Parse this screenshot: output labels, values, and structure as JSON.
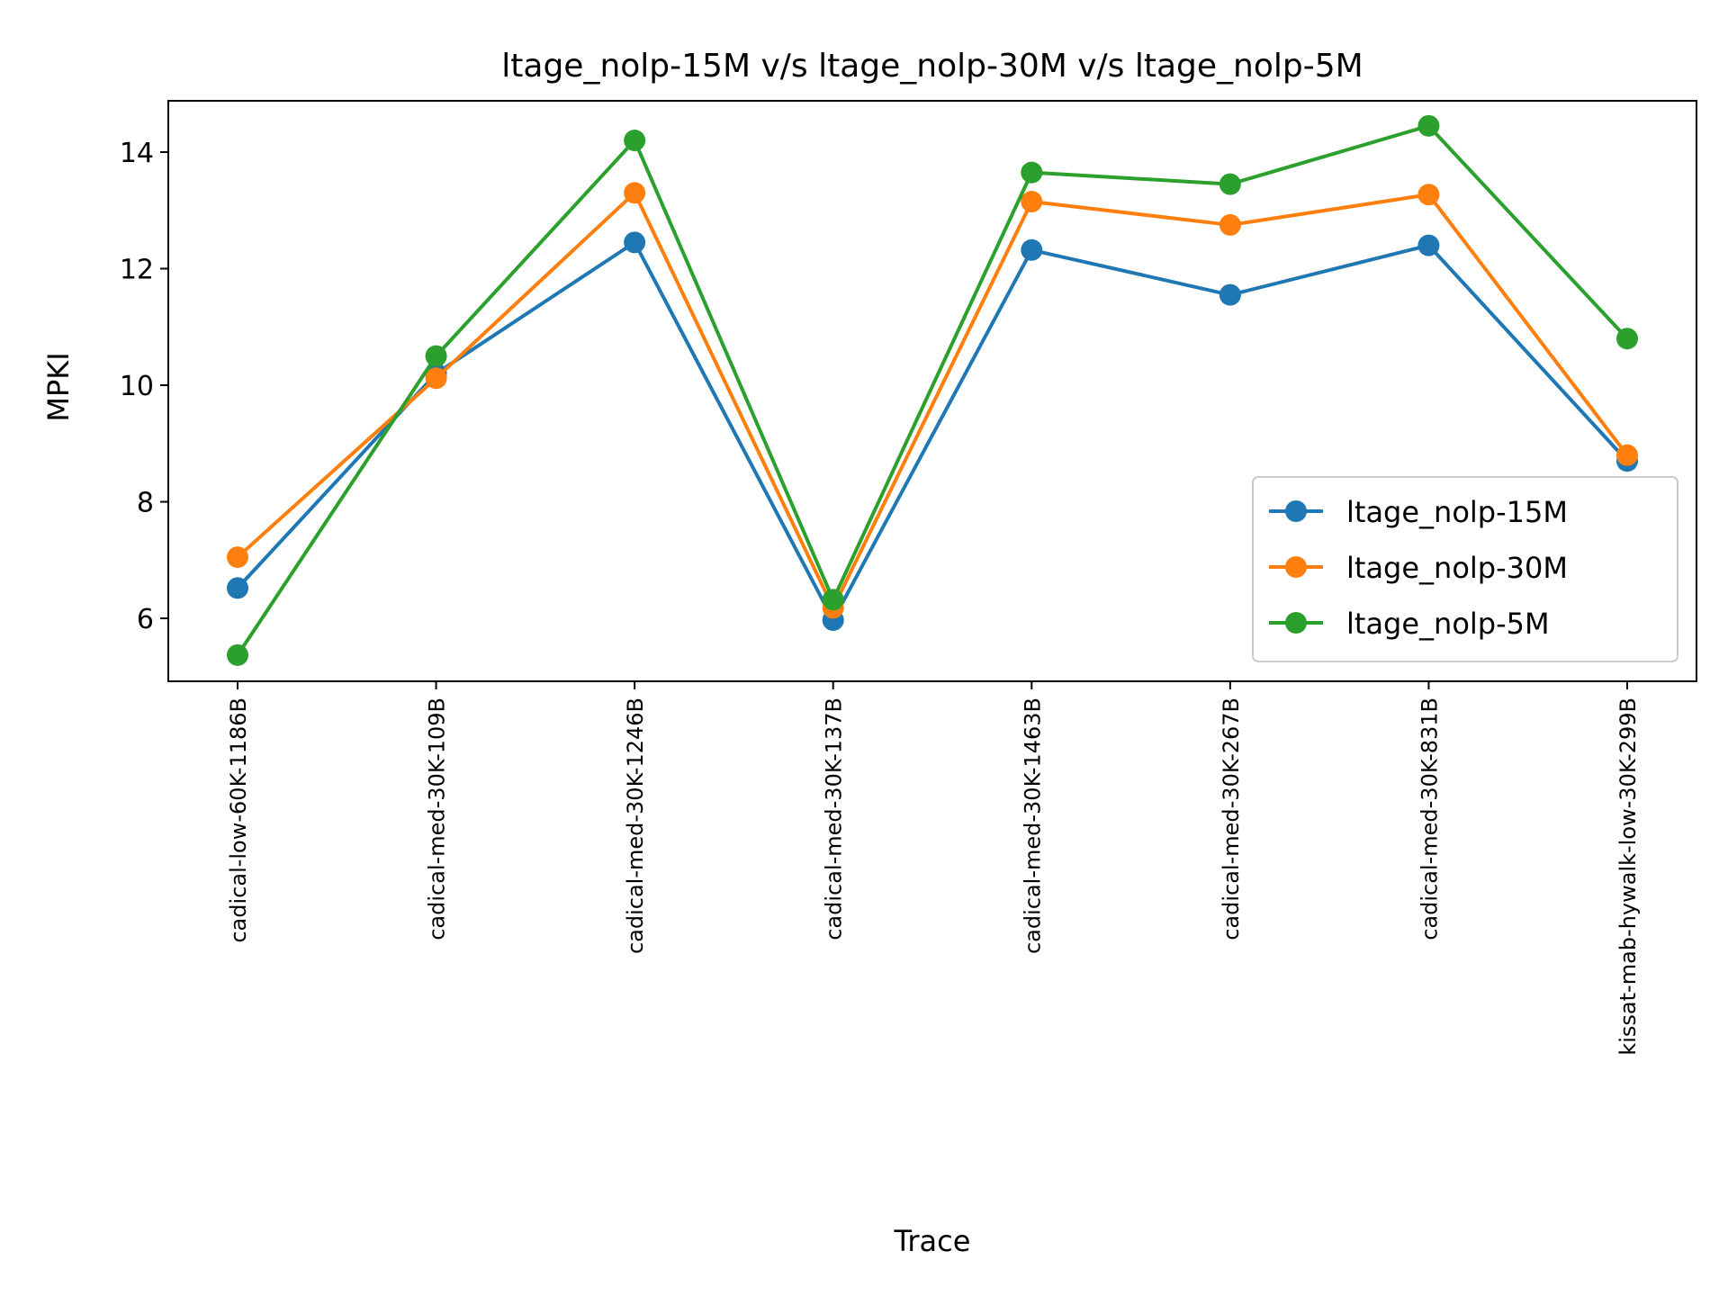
{
  "chart_data": {
    "type": "line",
    "title": "ltage_nolp-15M v/s ltage_nolp-30M v/s ltage_nolp-5M",
    "xlabel": "Trace",
    "ylabel": "MPKI",
    "categories": [
      "cadical-low-60K-1186B",
      "cadical-med-30K-109B",
      "cadical-med-30K-1246B",
      "cadical-med-30K-137B",
      "cadical-med-30K-1463B",
      "cadical-med-30K-267B",
      "cadical-med-30K-831B",
      "kissat-mab-hywalk-low-30K-299B"
    ],
    "ylim": [
      4.92,
      14.88
    ],
    "yticks": [
      6,
      8,
      10,
      12,
      14
    ],
    "grid": false,
    "legend_position": "lower-right",
    "series": [
      {
        "name": "ltage_nolp-15M",
        "color": "#1f77b4",
        "values": [
          6.52,
          10.2,
          12.45,
          5.97,
          12.32,
          11.55,
          12.4,
          8.7
        ]
      },
      {
        "name": "ltage_nolp-30M",
        "color": "#ff7f0e",
        "values": [
          7.05,
          10.12,
          13.3,
          6.18,
          13.15,
          12.75,
          13.27,
          8.8
        ]
      },
      {
        "name": "ltage_nolp-5M",
        "color": "#2ca02c",
        "values": [
          5.37,
          10.5,
          14.2,
          6.32,
          13.65,
          13.45,
          14.45,
          10.8
        ]
      }
    ]
  }
}
